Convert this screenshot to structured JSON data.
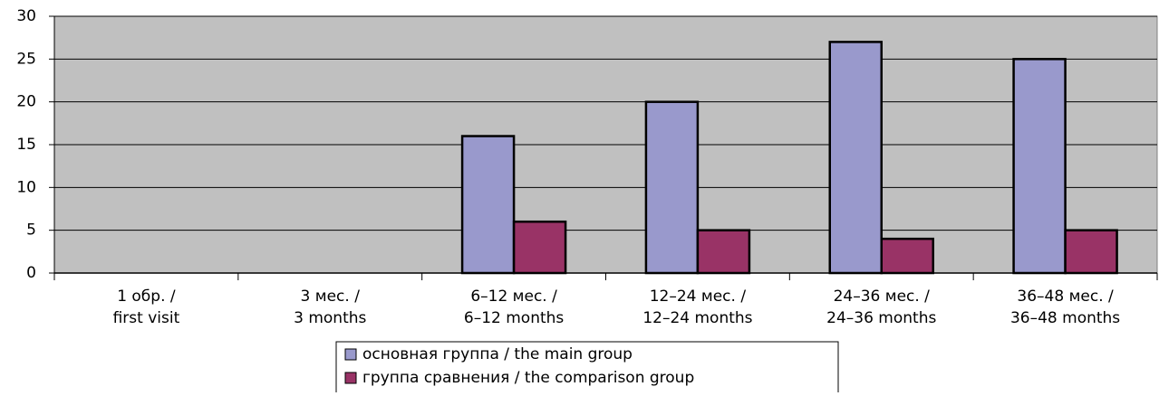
{
  "chart_data": {
    "type": "bar",
    "categories": [
      [
        "1 обр. /",
        "first visit"
      ],
      [
        "3 мес. /",
        "3 months"
      ],
      [
        "6–12 мес. /",
        "6–12 months"
      ],
      [
        "12–24 мес. /",
        "12–24 months"
      ],
      [
        "24–36 мес. /",
        "24–36 months"
      ],
      [
        "36–48 мес. /",
        "36–48 months"
      ]
    ],
    "series": [
      {
        "name": "основная группа  / the main group",
        "color": "#9999cc",
        "values": [
          0,
          0,
          16,
          20,
          27,
          25
        ]
      },
      {
        "name": "группа сравнения / the comparison group",
        "color": "#993366",
        "values": [
          0,
          0,
          6,
          5,
          4,
          5
        ]
      }
    ],
    "ylim": [
      0,
      30
    ],
    "yticks": [
      0,
      5,
      10,
      15,
      20,
      25,
      30
    ],
    "grid": true,
    "legend": "bottom"
  }
}
